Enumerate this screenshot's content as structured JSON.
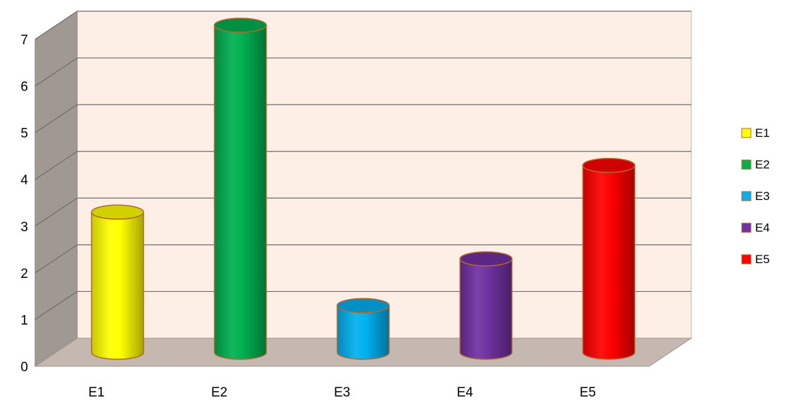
{
  "chart_data": {
    "type": "bar",
    "style": "3d-cylinder",
    "categories": [
      "E1",
      "E2",
      "E3",
      "E4",
      "E5"
    ],
    "values": [
      3,
      7,
      1,
      2,
      4
    ],
    "colors": [
      "#ffff00",
      "#00b050",
      "#00b0f0",
      "#7030a0",
      "#ff0000"
    ],
    "yticks": [
      "0",
      "1",
      "2",
      "3",
      "4",
      "5",
      "6",
      "7"
    ],
    "ylim": [
      0,
      7
    ],
    "grid": true,
    "legend": {
      "placement": "right",
      "entries": [
        "E1",
        "E2",
        "E3",
        "E4",
        "E5"
      ]
    },
    "wall_color": "#fdeee6",
    "side_wall_color": "#a09892",
    "floor_color": "#c4b8b1",
    "outline_color": "#b5672b"
  }
}
